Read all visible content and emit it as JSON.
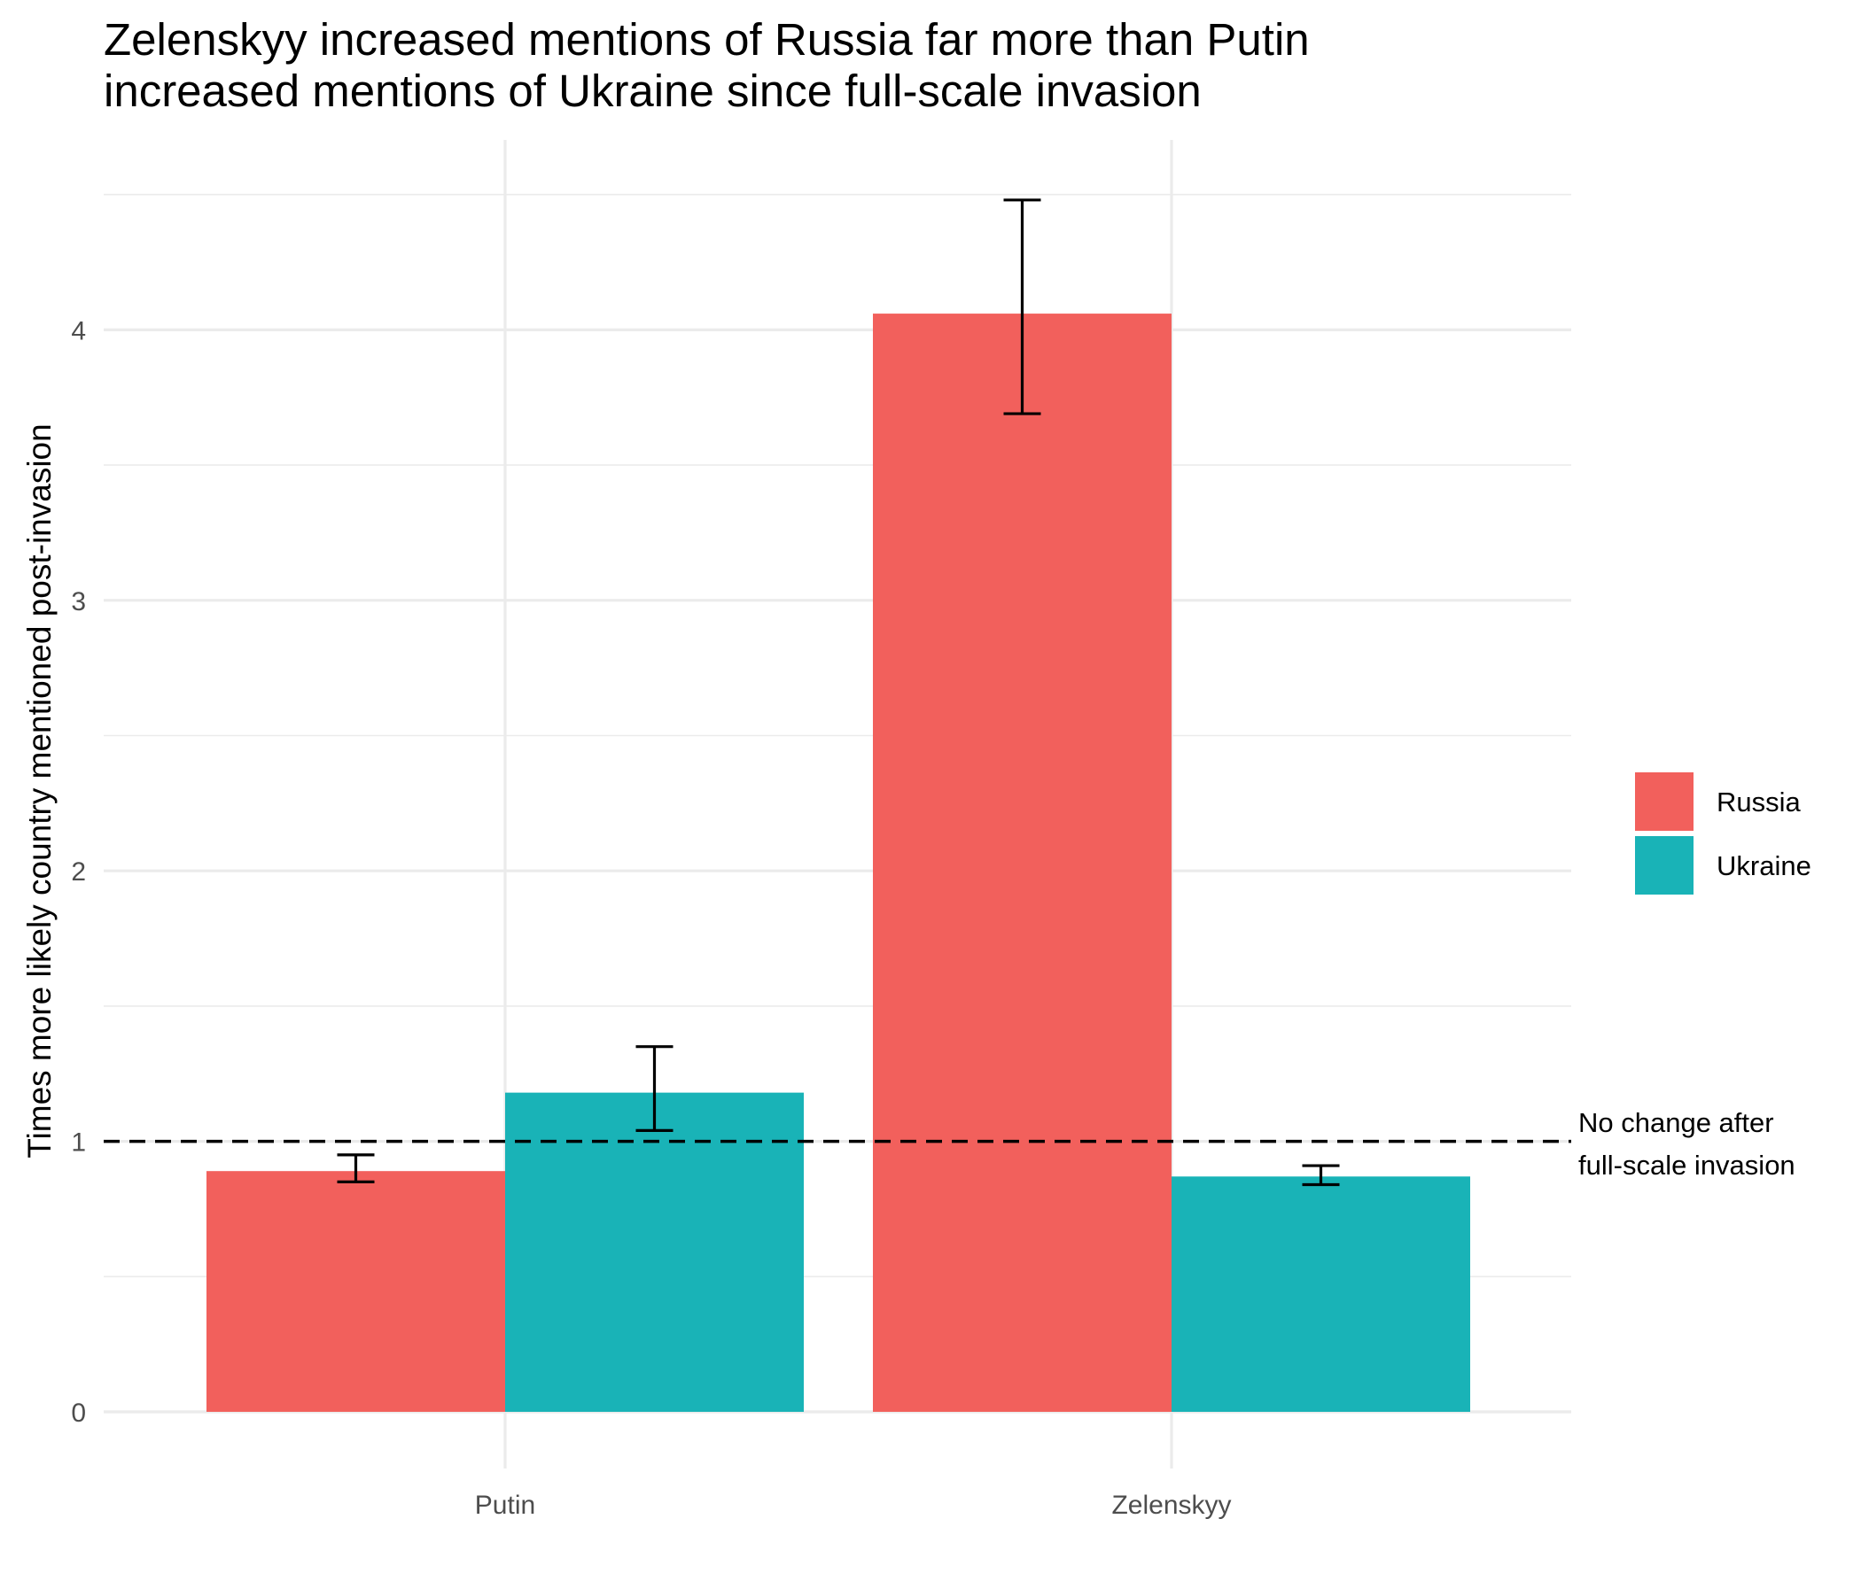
{
  "chart_data": {
    "type": "bar",
    "title": [
      "Zelenskyy increased mentions of Russia far more than Putin",
      "increased mentions of Ukraine since full-scale invasion"
    ],
    "xlabel": "",
    "ylabel": "Times more likely country mentioned post-invasion",
    "categories": [
      "Putin",
      "Zelenskyy"
    ],
    "series": [
      {
        "name": "Russia",
        "color": "#F2605C",
        "values": [
          0.89,
          4.06
        ],
        "error_low": [
          0.85,
          3.69
        ],
        "error_high": [
          0.95,
          4.48
        ]
      },
      {
        "name": "Ukraine",
        "color": "#19B3B7",
        "values": [
          1.18,
          0.87
        ],
        "error_low": [
          1.04,
          0.84
        ],
        "error_high": [
          1.35,
          0.91
        ]
      }
    ],
    "ylim": [
      -0.21,
      4.68
    ],
    "yticks": [
      0,
      1,
      2,
      3,
      4
    ],
    "ytick_labels": [
      "0",
      "1",
      "2",
      "3",
      "4"
    ],
    "grid": true,
    "legend": "right",
    "reference_line": {
      "y": 1,
      "style": "dashed",
      "label": [
        "No change after",
        "full-scale invasion"
      ]
    }
  }
}
